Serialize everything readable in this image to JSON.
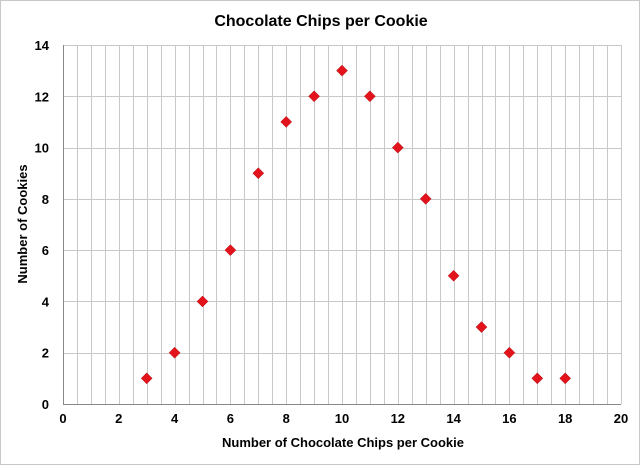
{
  "chart_data": {
    "type": "scatter",
    "title": "Chocolate Chips per Cookie",
    "xlabel": "Number of Chocolate Chips per Cookie",
    "ylabel": "Number of Cookies",
    "xlim": [
      0,
      20
    ],
    "ylim": [
      0,
      14
    ],
    "x_major_ticks": [
      0,
      2,
      4,
      6,
      8,
      10,
      12,
      14,
      16,
      18,
      20
    ],
    "y_major_ticks": [
      0,
      2,
      4,
      6,
      8,
      10,
      12,
      14
    ],
    "x_minor_step": 0.5,
    "y_major_step": 2,
    "grid": true,
    "legend": "none",
    "marker": "diamond",
    "marker_color": "#e3131b",
    "points": [
      {
        "x": 3,
        "y": 1
      },
      {
        "x": 4,
        "y": 2
      },
      {
        "x": 5,
        "y": 4
      },
      {
        "x": 6,
        "y": 6
      },
      {
        "x": 7,
        "y": 9
      },
      {
        "x": 8,
        "y": 11
      },
      {
        "x": 9,
        "y": 12
      },
      {
        "x": 10,
        "y": 13
      },
      {
        "x": 11,
        "y": 12
      },
      {
        "x": 12,
        "y": 10
      },
      {
        "x": 13,
        "y": 8
      },
      {
        "x": 14,
        "y": 5
      },
      {
        "x": 15,
        "y": 3
      },
      {
        "x": 16,
        "y": 2
      },
      {
        "x": 17,
        "y": 1
      },
      {
        "x": 18,
        "y": 1
      }
    ]
  }
}
